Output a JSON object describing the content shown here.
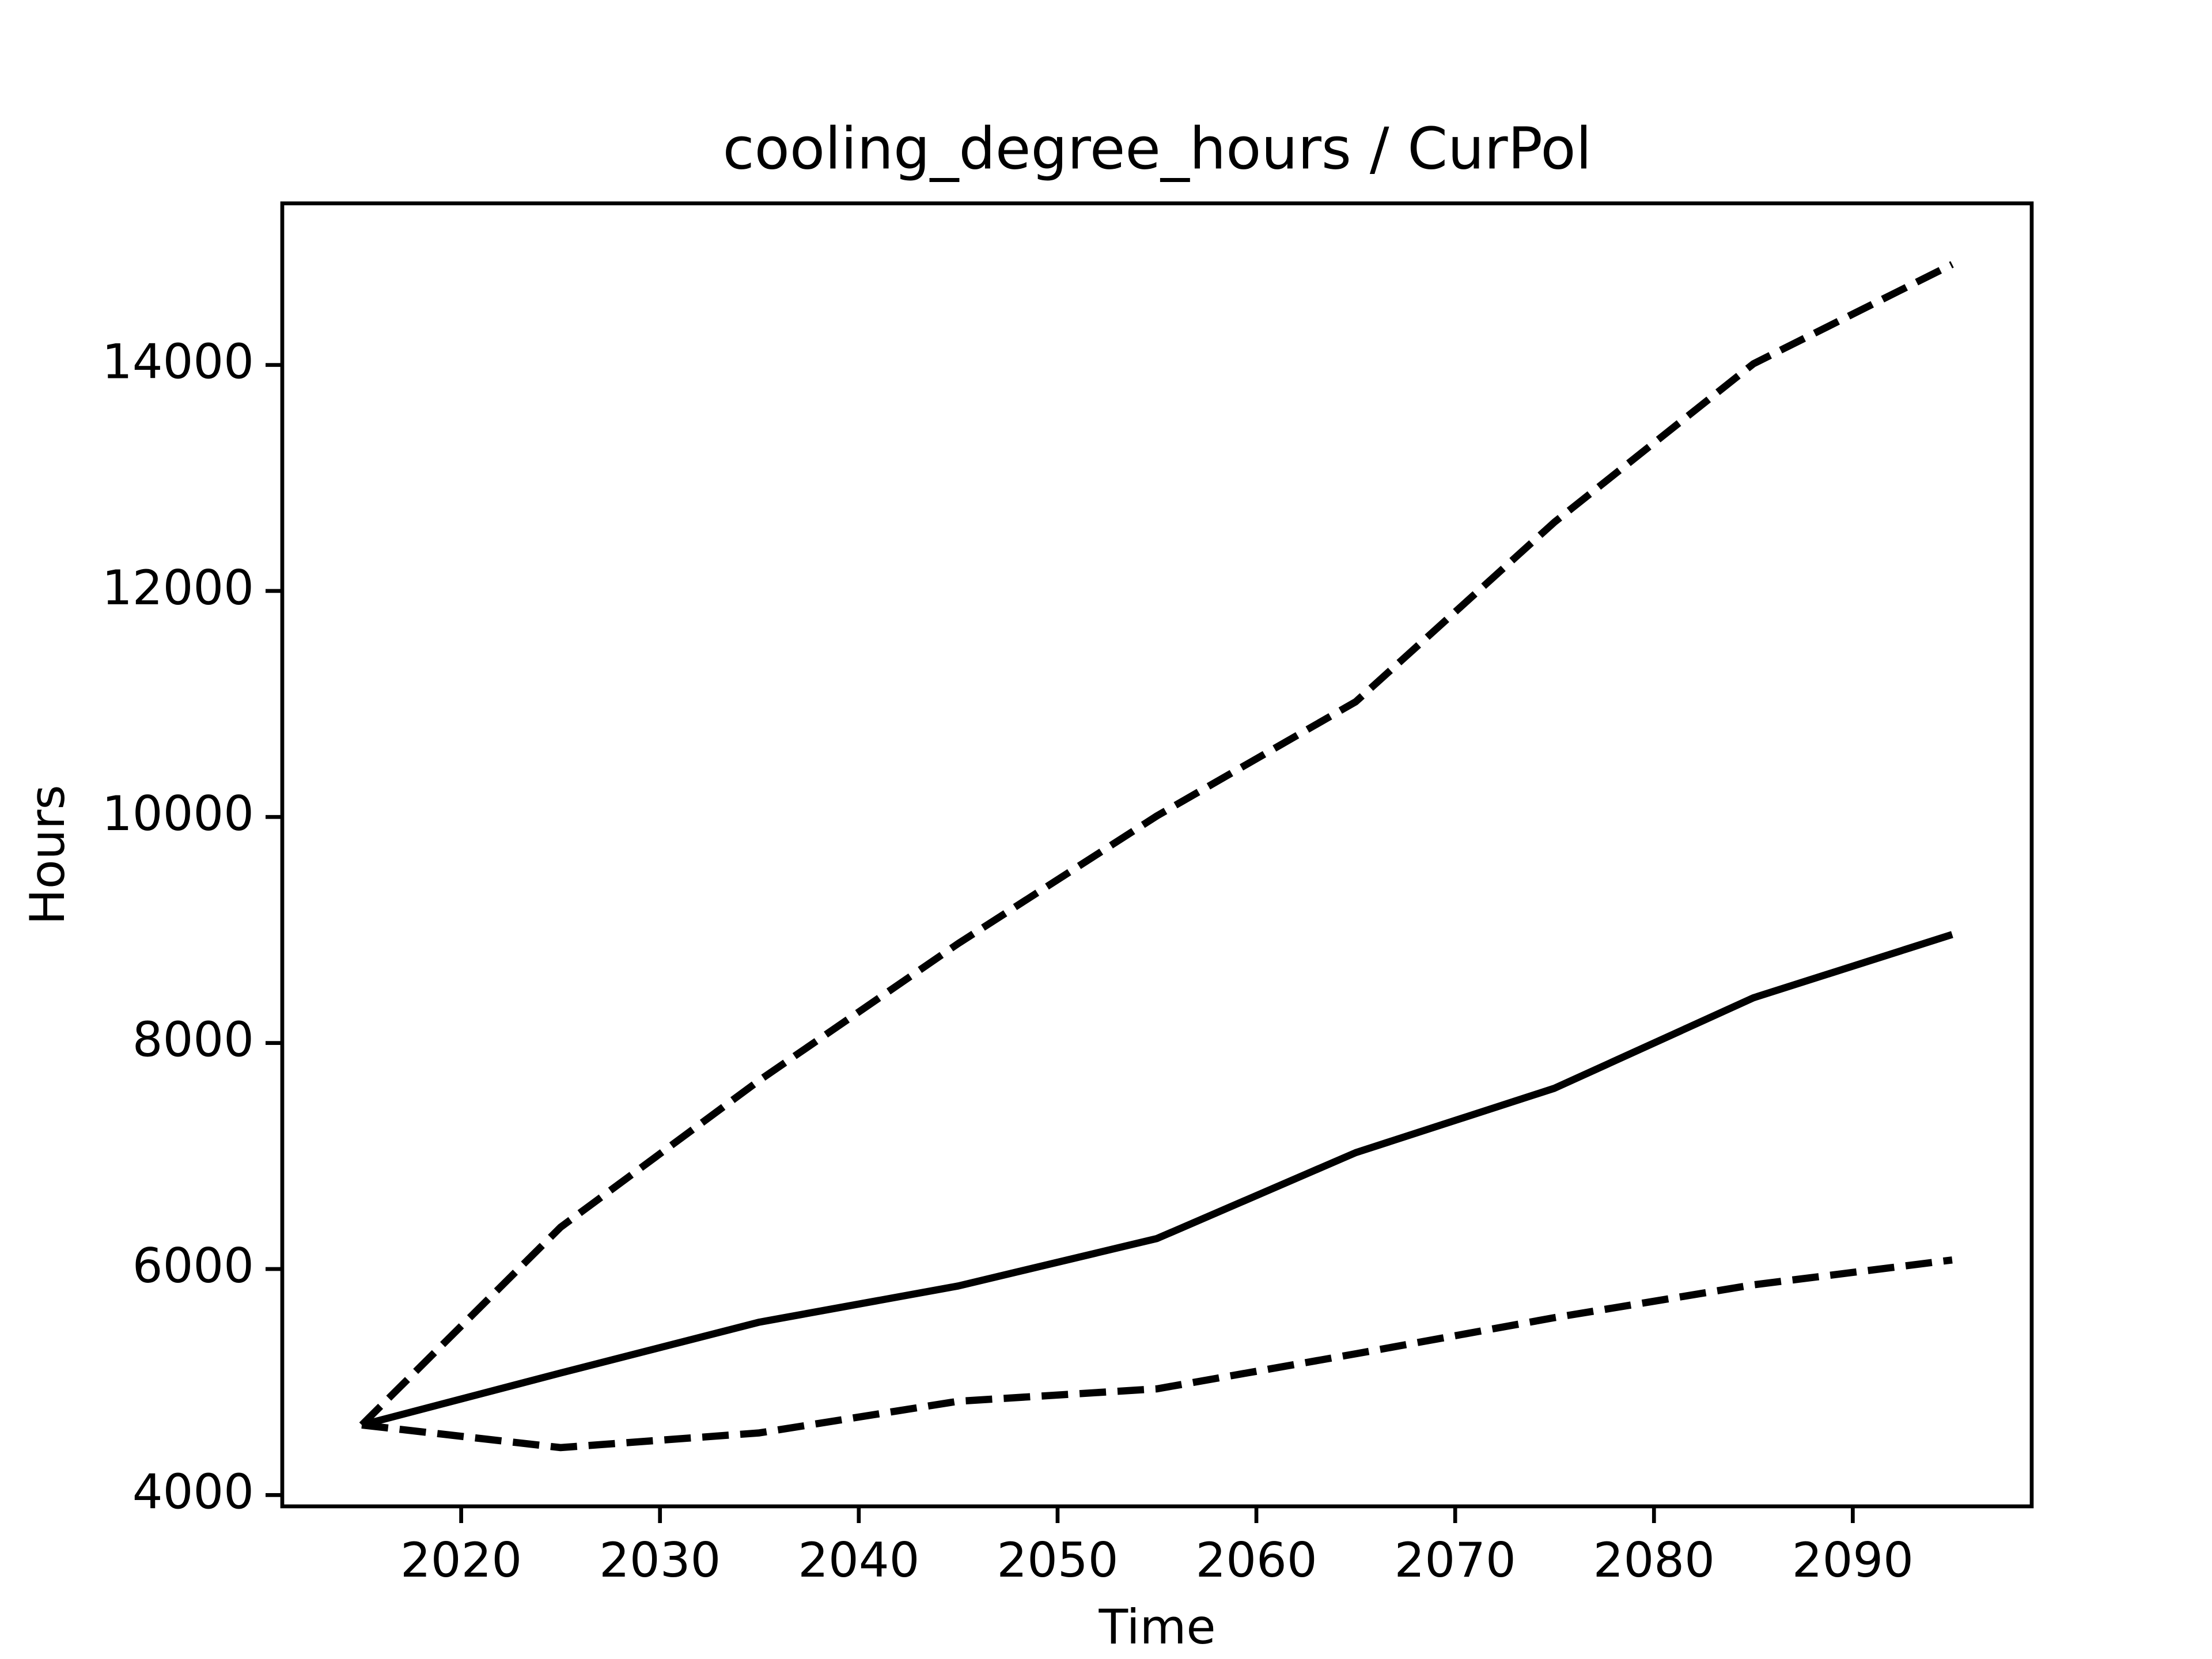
{
  "chart_data": {
    "type": "line",
    "title": "cooling_degree_hours / CurPol",
    "x_label": "Time",
    "y_label": "Hours",
    "x": [
      2015,
      2025,
      2035,
      2045,
      2055,
      2065,
      2075,
      2085,
      2095
    ],
    "series": [
      {
        "color": "#000000",
        "linestyle": "dashed",
        "values": [
          4620,
          6370,
          7670,
          8880,
          10010,
          11020,
          12610,
          14010,
          14890
        ]
      },
      {
        "color": "#000000",
        "linestyle": "solid",
        "values": [
          4620,
          5080,
          5530,
          5850,
          6270,
          7030,
          7600,
          8400,
          8960
        ]
      },
      {
        "color": "#000000",
        "linestyle": "dashed",
        "values": [
          4620,
          4420,
          4550,
          4830,
          4940,
          5250,
          5570,
          5860,
          6080
        ]
      }
    ],
    "xlim": [
      2011,
      2099
    ],
    "ylim": [
      3900,
      15430
    ],
    "xticks": [
      2020,
      2030,
      2040,
      2050,
      2060,
      2070,
      2080,
      2090
    ],
    "yticks": [
      4000,
      6000,
      8000,
      10000,
      12000,
      14000
    ],
    "grid": false
  }
}
